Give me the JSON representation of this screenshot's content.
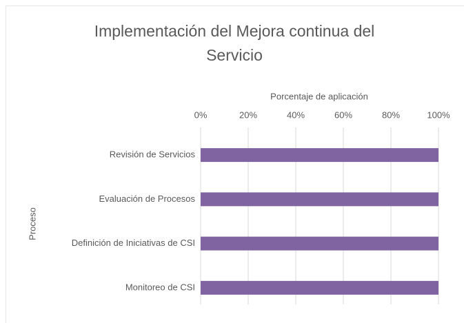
{
  "chart_data": {
    "type": "bar",
    "orientation": "horizontal",
    "title": "Implementación del Mejora continua del Servicio",
    "x_axis_label": "Porcentaje de aplicación",
    "y_axis_label": "Proceso",
    "categories": [
      "Revisión de Servicios",
      "Evaluación de Procesos",
      "Definición de Iniciativas de CSI",
      "Monitoreo de CSI"
    ],
    "values": [
      100,
      100,
      100,
      100
    ],
    "color": "#8064a2",
    "xlim": [
      0,
      100
    ],
    "xticks": [
      {
        "value": 0,
        "label": "0%"
      },
      {
        "value": 20,
        "label": "20%"
      },
      {
        "value": 40,
        "label": "40%"
      },
      {
        "value": 60,
        "label": "60%"
      },
      {
        "value": 80,
        "label": "80%"
      },
      {
        "value": 100,
        "label": "100%"
      }
    ],
    "grid": true
  }
}
